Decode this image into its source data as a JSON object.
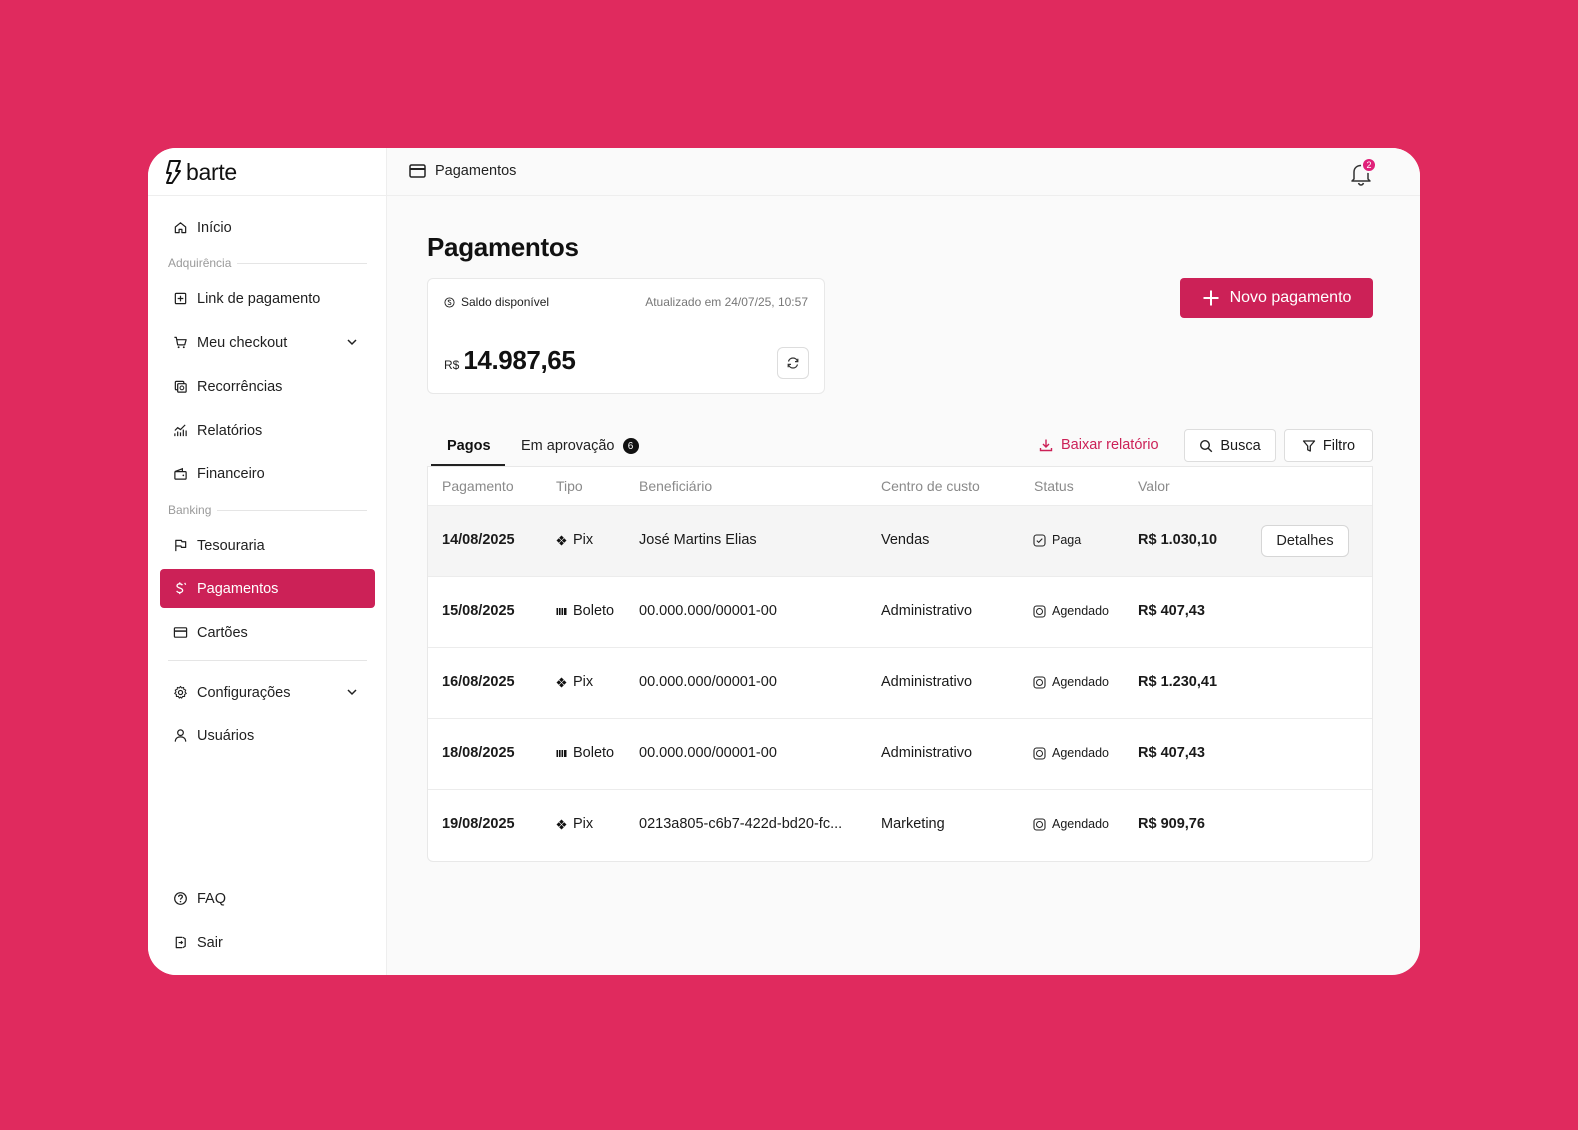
{
  "app": {
    "logo_text": "barte"
  },
  "sidebar": {
    "items": [
      {
        "label": "Início",
        "icon": "home-icon"
      },
      {
        "section": "Adquirência"
      },
      {
        "label": "Link de pagamento",
        "icon": "plus-square-icon"
      },
      {
        "label": "Meu checkout",
        "icon": "cart-icon",
        "expandable": true
      },
      {
        "label": "Recorrências",
        "icon": "recurrence-icon"
      },
      {
        "label": "Relatórios",
        "icon": "chart-icon"
      },
      {
        "label": "Financeiro",
        "icon": "wallet-icon"
      },
      {
        "section": "Banking"
      },
      {
        "label": "Tesouraria",
        "icon": "flag-icon"
      },
      {
        "label": "Pagamentos",
        "icon": "dollar-icon",
        "active": true
      },
      {
        "label": "Cartões",
        "icon": "card-icon"
      },
      {
        "label": "Configurações",
        "icon": "gear-icon",
        "expandable": true
      },
      {
        "label": "Usuários",
        "icon": "user-icon"
      },
      {
        "label": "FAQ",
        "icon": "help-icon"
      },
      {
        "label": "Sair",
        "icon": "logout-icon"
      }
    ]
  },
  "topbar": {
    "breadcrumb": "Pagamentos",
    "notifications_count": "2"
  },
  "main": {
    "title": "Pagamentos",
    "balance": {
      "label": "Saldo disponível",
      "updated": "Atualizado em 24/07/25, 10:57",
      "currency": "R$",
      "value": "14.987,65"
    },
    "new_payment_label": "Novo pagamento",
    "tabs": [
      {
        "label": "Pagos",
        "active": true
      },
      {
        "label": "Em aprovação",
        "count": "6"
      }
    ],
    "download_label": "Baixar relatório",
    "search_label": "Busca",
    "filter_label": "Filtro"
  },
  "table": {
    "columns": [
      "Pagamento",
      "Tipo",
      "Beneficiário",
      "Centro de custo",
      "Status",
      "Valor"
    ],
    "rows": [
      {
        "date": "14/08/2025",
        "type": "Pix",
        "beneficiary": "José Martins Elias",
        "cost_center": "Vendas",
        "status": "Paga",
        "value": "R$ 1.030,10",
        "action": "Detalhes"
      },
      {
        "date": "15/08/2025",
        "type": "Boleto",
        "beneficiary": "00.000.000/00001-00",
        "cost_center": "Administrativo",
        "status": "Agendado",
        "value": "R$ 407,43"
      },
      {
        "date": "16/08/2025",
        "type": "Pix",
        "beneficiary": "00.000.000/00001-00",
        "cost_center": "Administrativo",
        "status": "Agendado",
        "value": "R$ 1.230,41"
      },
      {
        "date": "18/08/2025",
        "type": "Boleto",
        "beneficiary": "00.000.000/00001-00",
        "cost_center": "Administrativo",
        "status": "Agendado",
        "value": "R$ 407,43"
      },
      {
        "date": "19/08/2025",
        "type": "Pix",
        "beneficiary": "0213a805-c6b7-422d-bd20-fc...",
        "cost_center": "Marketing",
        "status": "Agendado",
        "value": "R$ 909,76"
      }
    ]
  },
  "colors": {
    "background": "#e02a5e",
    "accent": "#cc2157",
    "badge": "#e0217a"
  }
}
